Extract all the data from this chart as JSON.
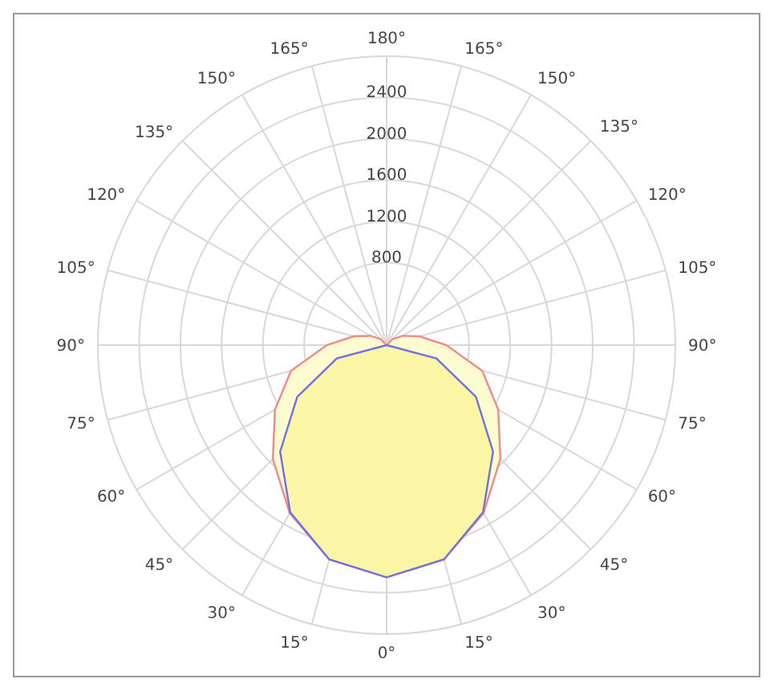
{
  "chart_data": {
    "type": "radar",
    "categories": [
      "180°",
      "165°",
      "150°",
      "135°",
      "120°",
      "105°",
      "90°",
      "75°",
      "60°",
      "45°",
      "30°",
      "15°",
      "0°",
      "15°",
      "30°",
      "45°",
      "60°",
      "75°",
      "90°",
      "105°",
      "120°",
      "135°",
      "150°",
      "165°"
    ],
    "series": [
      {
        "color": "#f08a8a",
        "values": [
          0,
          0,
          0,
          80,
          180,
          330,
          580,
          960,
          1250,
          1560,
          1880,
          2150,
          2250,
          2150,
          1880,
          1560,
          1250,
          960,
          580,
          330,
          180,
          80,
          0,
          0
        ]
      },
      {
        "color": "#7070e0",
        "values": [
          0,
          0,
          0,
          0,
          0,
          0,
          0,
          500,
          1000,
          1460,
          1870,
          2150,
          2250,
          2150,
          1870,
          1460,
          1000,
          500,
          0,
          0,
          0,
          0,
          0,
          0
        ]
      }
    ],
    "ylim": [
      0,
      2800
    ],
    "yticks": [
      800,
      1200,
      1600,
      2000,
      2400
    ],
    "grid": true
  }
}
